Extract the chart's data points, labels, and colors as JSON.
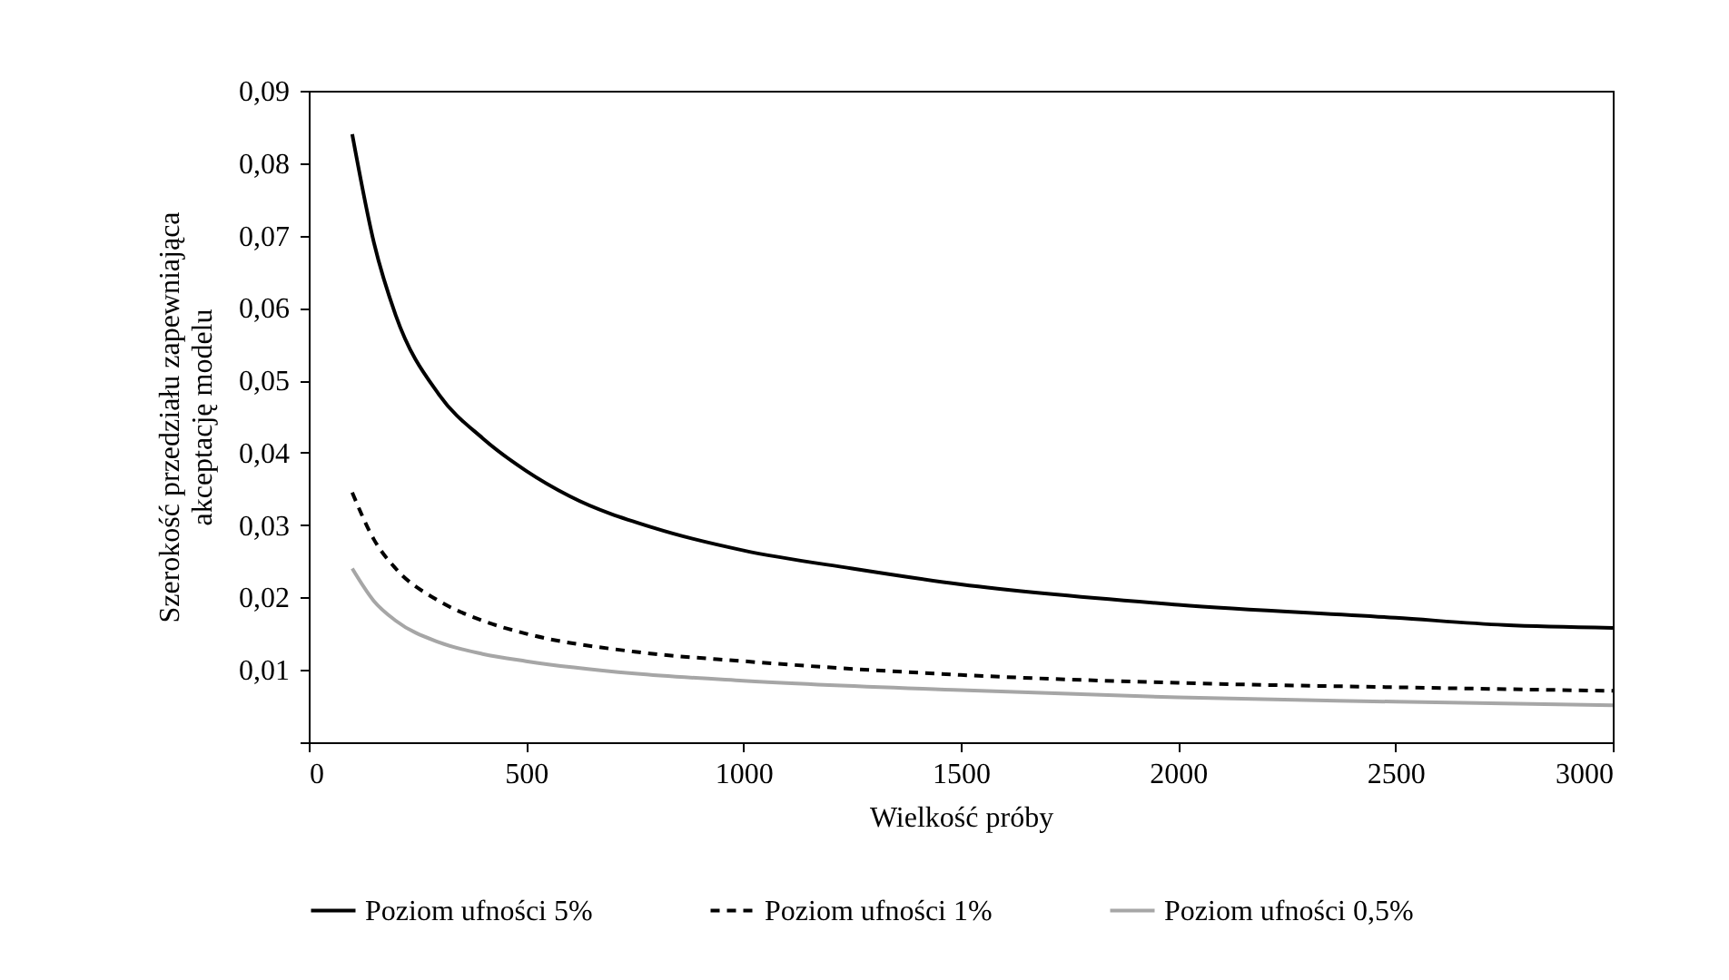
{
  "chart_data": {
    "type": "line",
    "xlabel": "Wielkość próby",
    "ylabel": "Szerokość przedziału zapewniająca akceptację modelu",
    "xlim": [
      0,
      3000
    ],
    "xticks": [
      0,
      500,
      1000,
      1500,
      2000,
      2500,
      3000
    ],
    "ylim": [
      0,
      0.09
    ],
    "yticks": [
      {
        "value": 0,
        "label": null
      },
      {
        "value": 0.01,
        "label": "0,01"
      },
      {
        "value": 0.02,
        "label": "0,02"
      },
      {
        "value": 0.03,
        "label": "0,03"
      },
      {
        "value": 0.04,
        "label": "0,04"
      },
      {
        "value": 0.05,
        "label": "0,05"
      },
      {
        "value": 0.06,
        "label": "0,06"
      },
      {
        "value": 0.07,
        "label": "0,07"
      },
      {
        "value": 0.08,
        "label": "0,08"
      },
      {
        "value": 0.09,
        "label": "0,09"
      }
    ],
    "grid": false,
    "legend": "bottom",
    "marker": "none",
    "series": [
      {
        "name": "Poziom ufności 5%",
        "color": "#000000",
        "line_style": "solid",
        "x": [
          100,
          150,
          200,
          300,
          400,
          500,
          600,
          800,
          1000,
          1250,
          1500,
          2000,
          2500,
          2750,
          3000
        ],
        "values": [
          0.084,
          0.069,
          0.059,
          0.048,
          0.042,
          0.0375,
          0.034,
          0.0295,
          0.0265,
          0.024,
          0.0218,
          0.019,
          0.0172,
          0.0162,
          0.0158
        ]
      },
      {
        "name": "Poziom ufności 1%",
        "color": "#000000",
        "line_style": "dashed",
        "x": [
          100,
          150,
          200,
          300,
          400,
          500,
          750,
          1000,
          1500,
          2000,
          2500,
          3000
        ],
        "values": [
          0.0345,
          0.028,
          0.024,
          0.0195,
          0.0168,
          0.015,
          0.0125,
          0.0112,
          0.0093,
          0.0082,
          0.0076,
          0.0071
        ]
      },
      {
        "name": "Poziom ufności 0,5%",
        "color": "#a6a6a6",
        "line_style": "solid",
        "x": [
          100,
          150,
          200,
          300,
          400,
          500,
          750,
          1000,
          1500,
          2000,
          2500,
          3000
        ],
        "values": [
          0.024,
          0.0195,
          0.0168,
          0.0138,
          0.0122,
          0.0112,
          0.0095,
          0.0085,
          0.0072,
          0.0062,
          0.0056,
          0.0051
        ]
      }
    ]
  }
}
